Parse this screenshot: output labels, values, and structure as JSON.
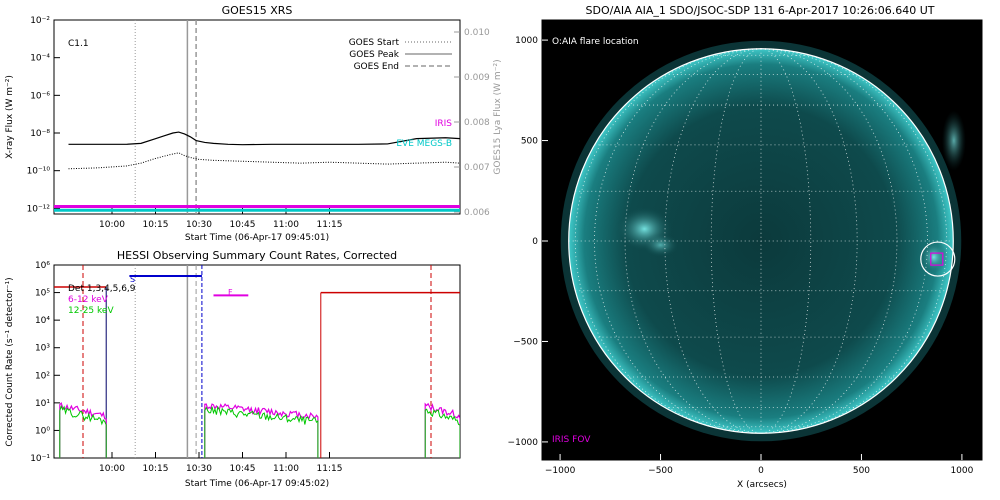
{
  "chart_data": [
    {
      "type": "line",
      "title": "GOES15 XRS",
      "xlabel": "Start Time (06-Apr-17 09:45:01)",
      "ylabel": "X-ray Flux (W m⁻²)",
      "ylabel_right": "GOES15 Lya Flux (W m⁻²)",
      "flare_class": "C1.1",
      "x_ticks": [
        "10:00",
        "10:15",
        "10:30",
        "10:45",
        "11:00",
        "11:15"
      ],
      "y_ticks": [
        "10⁻¹²",
        "10⁻¹⁰",
        "10⁻⁸",
        "10⁻⁶",
        "10⁻⁴",
        "10⁻²"
      ],
      "y_ticks_right": [
        "0.006",
        "0.007",
        "0.008",
        "0.009",
        "0.010"
      ],
      "legend": [
        {
          "label": "GOES Start",
          "style": "dotted",
          "color": "#999999"
        },
        {
          "label": "GOES Peak",
          "style": "solid",
          "color": "#999999"
        },
        {
          "label": "GOES End",
          "style": "dashed",
          "color": "#999999"
        }
      ],
      "bar_labels": [
        {
          "label": "IRIS",
          "color": "#e000e0"
        },
        {
          "label": "EVE MEGS-B",
          "color": "#00c8c8"
        }
      ],
      "series": [
        {
          "name": "long channel",
          "color": "#000000",
          "x_min": [
            0,
            10,
            20,
            25,
            30,
            33,
            36,
            38,
            40,
            42,
            44,
            47,
            50,
            55,
            60,
            70,
            80,
            90,
            100,
            110,
            120,
            130,
            135
          ],
          "log_flux": [
            -8.6,
            -8.6,
            -8.6,
            -8.55,
            -8.3,
            -8.15,
            -8.0,
            -7.95,
            -8.05,
            -8.2,
            -8.4,
            -8.5,
            -8.55,
            -8.6,
            -8.62,
            -8.6,
            -8.6,
            -8.6,
            -8.6,
            -8.58,
            -8.3,
            -8.25,
            -8.3
          ]
        },
        {
          "name": "short channel",
          "color": "#000000",
          "x_min": [
            0,
            10,
            20,
            25,
            30,
            35,
            38,
            40,
            42,
            45,
            50,
            60,
            70,
            80,
            90,
            100,
            110,
            120,
            130,
            135
          ],
          "log_flux": [
            -9.9,
            -9.85,
            -9.75,
            -9.6,
            -9.35,
            -9.15,
            -9.05,
            -9.2,
            -9.3,
            -9.4,
            -9.45,
            -9.5,
            -9.55,
            -9.6,
            -9.55,
            -9.6,
            -9.65,
            -9.6,
            -9.55,
            -9.6
          ]
        }
      ],
      "markers_min": {
        "start": 23,
        "peak": 41,
        "end": 44
      },
      "iris_level": -11.9,
      "eve_level": -12.1,
      "x_range_min": [
        -5,
        135
      ],
      "ylim_log": [
        -12.3,
        -2
      ]
    },
    {
      "type": "line",
      "title": "HESSI Observing Summary Count Rates, Corrected",
      "xlabel": "Start Time (06-Apr-17 09:45:02)",
      "ylabel": "Corrected Count Rate (s⁻¹ detector⁻¹)",
      "x_ticks": [
        "10:00",
        "10:15",
        "10:30",
        "10:45",
        "11:00",
        "11:15"
      ],
      "y_ticks": [
        "10⁻¹",
        "10⁰",
        "10¹",
        "10²",
        "10³",
        "10⁴",
        "10⁵",
        "10⁶"
      ],
      "legend_lines": [
        {
          "label": "Det 1,3,4,5,6,9",
          "color": "#000000"
        },
        {
          "label": "6-12 keV",
          "color": "#e000e0"
        },
        {
          "label": "12-25 keV",
          "color": "#00c800"
        }
      ],
      "annot_s": "S",
      "annot_f": "F",
      "x_range_min": [
        -5,
        135
      ],
      "ylim_log": [
        -1,
        6
      ]
    },
    {
      "type": "heatmap",
      "title": "SDO/AIA AIA_1 SDO/JSOC-SDP 131   6-Apr-2017 10:26:06.640 UT",
      "xlabel": "X (arcsecs)",
      "ylabel": "",
      "x_ticks": [
        "−1000",
        "−500",
        "0",
        "500",
        "1000"
      ],
      "y_ticks": [
        "−1000",
        "−500",
        "0",
        "500",
        "1000"
      ],
      "annotation": "O:AIA flare location",
      "fov_label": "IRIS FOV",
      "flare_location_arcsec": [
        880,
        -90
      ],
      "solar_radius_arcsec": 957,
      "xlim": [
        -1090,
        1100
      ],
      "ylim": [
        -1090,
        1100
      ]
    }
  ]
}
